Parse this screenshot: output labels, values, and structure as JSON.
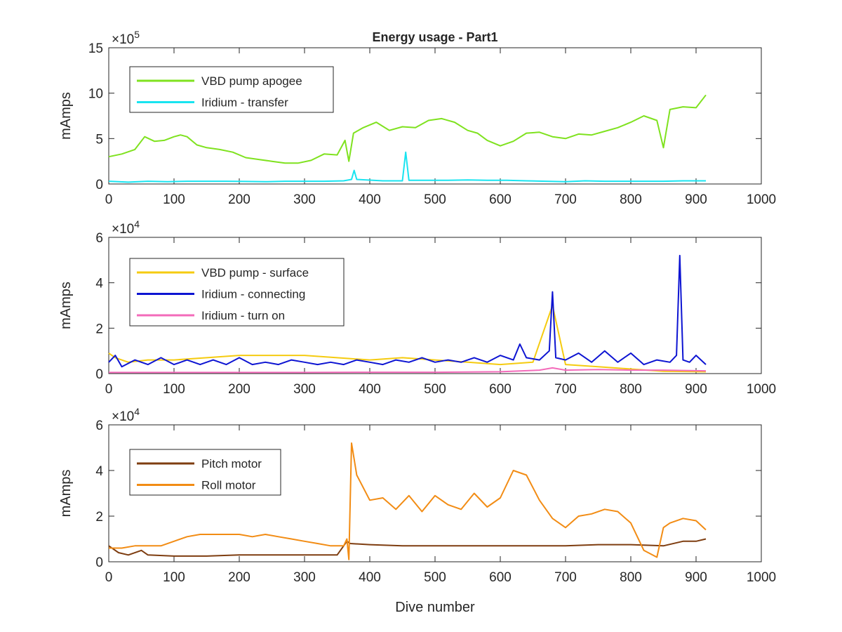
{
  "figure": {
    "title": "Energy usage - Part1",
    "xlabel": "Dive number"
  },
  "colors": {
    "axis": "#262626",
    "background": "#ffffff",
    "legend_border": "#262626"
  },
  "chart_data": [
    {
      "type": "line",
      "title": "Energy usage - Part1",
      "xlabel": "",
      "ylabel": "mAmps",
      "xlim": [
        0,
        1000
      ],
      "ylim": [
        0,
        1500000
      ],
      "xticks": [
        0,
        100,
        200,
        300,
        400,
        500,
        600,
        700,
        800,
        900,
        1000
      ],
      "yticks": [
        0,
        5,
        10,
        15
      ],
      "exponent_label": "×10",
      "exponent": "5",
      "grid": false,
      "legend": "top-left",
      "series": [
        {
          "name": "VBD pump apogee",
          "color": "#7fe21f",
          "x": [
            0,
            20,
            40,
            55,
            70,
            85,
            100,
            110,
            120,
            135,
            150,
            170,
            190,
            210,
            230,
            250,
            270,
            290,
            310,
            330,
            350,
            362,
            368,
            375,
            390,
            410,
            430,
            450,
            470,
            490,
            510,
            530,
            550,
            565,
            580,
            600,
            620,
            640,
            660,
            680,
            700,
            720,
            740,
            760,
            780,
            800,
            820,
            840,
            850,
            860,
            880,
            900,
            915
          ],
          "y": [
            300000,
            330000,
            380000,
            520000,
            470000,
            480000,
            520000,
            540000,
            520000,
            430000,
            400000,
            380000,
            350000,
            290000,
            270000,
            250000,
            230000,
            230000,
            260000,
            330000,
            320000,
            480000,
            250000,
            560000,
            620000,
            680000,
            590000,
            630000,
            620000,
            700000,
            720000,
            680000,
            590000,
            560000,
            480000,
            420000,
            470000,
            560000,
            570000,
            520000,
            500000,
            550000,
            540000,
            580000,
            620000,
            680000,
            750000,
            700000,
            400000,
            820000,
            850000,
            840000,
            980000
          ]
        },
        {
          "name": "Iridium - transfer",
          "color": "#19e4f0",
          "x": [
            0,
            30,
            60,
            90,
            120,
            150,
            180,
            210,
            240,
            270,
            300,
            330,
            360,
            372,
            376,
            380,
            420,
            450,
            455,
            460,
            490,
            520,
            550,
            580,
            610,
            640,
            670,
            700,
            730,
            760,
            790,
            820,
            850,
            880,
            915
          ],
          "y": [
            30000,
            20000,
            30000,
            25000,
            30000,
            30000,
            30000,
            28000,
            25000,
            30000,
            30000,
            30000,
            35000,
            50000,
            150000,
            50000,
            35000,
            35000,
            350000,
            40000,
            40000,
            40000,
            45000,
            40000,
            40000,
            35000,
            30000,
            25000,
            35000,
            30000,
            30000,
            30000,
            30000,
            35000,
            35000
          ]
        }
      ]
    },
    {
      "type": "line",
      "title": "",
      "xlabel": "",
      "ylabel": "mAmps",
      "xlim": [
        0,
        1000
      ],
      "ylim": [
        0,
        60000
      ],
      "xticks": [
        0,
        100,
        200,
        300,
        400,
        500,
        600,
        700,
        800,
        900,
        1000
      ],
      "yticks": [
        0,
        2,
        4,
        6
      ],
      "exponent_label": "×10",
      "exponent": "4",
      "grid": false,
      "legend": "top-left",
      "series": [
        {
          "name": "VBD pump - surface",
          "color": "#f5cb10",
          "x": [
            0,
            10,
            30,
            60,
            100,
            150,
            200,
            250,
            300,
            350,
            400,
            450,
            500,
            550,
            600,
            650,
            680,
            700,
            750,
            800,
            850,
            915
          ],
          "y": [
            9000,
            7000,
            5000,
            6000,
            6000,
            7000,
            8000,
            8000,
            8000,
            7000,
            6000,
            7000,
            6000,
            5000,
            4000,
            5000,
            30000,
            4000,
            3000,
            2000,
            1000,
            800
          ]
        },
        {
          "name": "Iridium - connecting",
          "color": "#0d14d2",
          "x": [
            0,
            10,
            20,
            40,
            60,
            80,
            100,
            120,
            140,
            160,
            180,
            200,
            220,
            240,
            260,
            280,
            300,
            320,
            340,
            360,
            380,
            400,
            420,
            440,
            460,
            480,
            500,
            520,
            540,
            560,
            580,
            600,
            620,
            630,
            640,
            660,
            675,
            680,
            685,
            700,
            720,
            740,
            760,
            780,
            800,
            820,
            840,
            860,
            870,
            875,
            880,
            890,
            900,
            915
          ],
          "y": [
            5000,
            8000,
            3000,
            6000,
            4000,
            7000,
            4000,
            6000,
            4000,
            6000,
            4000,
            7000,
            4000,
            5000,
            4000,
            6000,
            5000,
            4000,
            5000,
            4000,
            6000,
            5000,
            4000,
            6000,
            5000,
            7000,
            5000,
            6000,
            5000,
            7000,
            5000,
            8000,
            6000,
            13000,
            7000,
            6000,
            10000,
            36000,
            7000,
            6000,
            9000,
            5000,
            10000,
            5000,
            9000,
            4000,
            6000,
            5000,
            8000,
            52000,
            6000,
            5000,
            8000,
            4000
          ]
        },
        {
          "name": "Iridium - turn on",
          "color": "#f36bba",
          "x": [
            0,
            100,
            200,
            300,
            400,
            500,
            600,
            660,
            680,
            700,
            750,
            800,
            850,
            915
          ],
          "y": [
            500,
            500,
            500,
            500,
            600,
            600,
            800,
            1500,
            2500,
            1500,
            1800,
            1500,
            1500,
            1200
          ]
        }
      ]
    },
    {
      "type": "line",
      "title": "",
      "xlabel": "Dive number",
      "ylabel": "mAmps",
      "xlim": [
        0,
        1000
      ],
      "ylim": [
        0,
        60000
      ],
      "xticks": [
        0,
        100,
        200,
        300,
        400,
        500,
        600,
        700,
        800,
        900,
        1000
      ],
      "yticks": [
        0,
        2,
        4,
        6
      ],
      "exponent_label": "×10",
      "exponent": "4",
      "grid": false,
      "legend": "top-left",
      "series": [
        {
          "name": "Pitch motor",
          "color": "#7e3d10",
          "x": [
            0,
            15,
            30,
            50,
            60,
            100,
            150,
            200,
            250,
            300,
            350,
            360,
            365,
            370,
            400,
            450,
            500,
            550,
            600,
            650,
            700,
            750,
            800,
            850,
            880,
            900,
            915
          ],
          "y": [
            7000,
            4000,
            3000,
            5000,
            3000,
            2500,
            2500,
            3000,
            3000,
            3000,
            3000,
            7000,
            9000,
            8000,
            7500,
            7000,
            7000,
            7000,
            7000,
            7000,
            7000,
            7500,
            7500,
            7000,
            9000,
            9000,
            10000
          ]
        },
        {
          "name": "Roll motor",
          "color": "#f28c14",
          "x": [
            0,
            20,
            40,
            60,
            80,
            100,
            120,
            140,
            160,
            180,
            200,
            220,
            240,
            260,
            280,
            300,
            320,
            340,
            360,
            365,
            368,
            372,
            380,
            400,
            420,
            440,
            460,
            480,
            500,
            520,
            540,
            560,
            580,
            600,
            620,
            640,
            660,
            680,
            700,
            720,
            740,
            760,
            780,
            800,
            820,
            840,
            850,
            860,
            880,
            900,
            915
          ],
          "y": [
            6000,
            6000,
            7000,
            7000,
            7000,
            9000,
            11000,
            12000,
            12000,
            12000,
            12000,
            11000,
            12000,
            11000,
            10000,
            9000,
            8000,
            7000,
            7000,
            10000,
            1000,
            52000,
            38000,
            27000,
            28000,
            23000,
            29000,
            22000,
            29000,
            25000,
            23000,
            30000,
            24000,
            28000,
            40000,
            38000,
            27000,
            19000,
            15000,
            20000,
            21000,
            23000,
            22000,
            17000,
            5000,
            2000,
            15000,
            17000,
            19000,
            18000,
            14000
          ]
        }
      ]
    }
  ]
}
